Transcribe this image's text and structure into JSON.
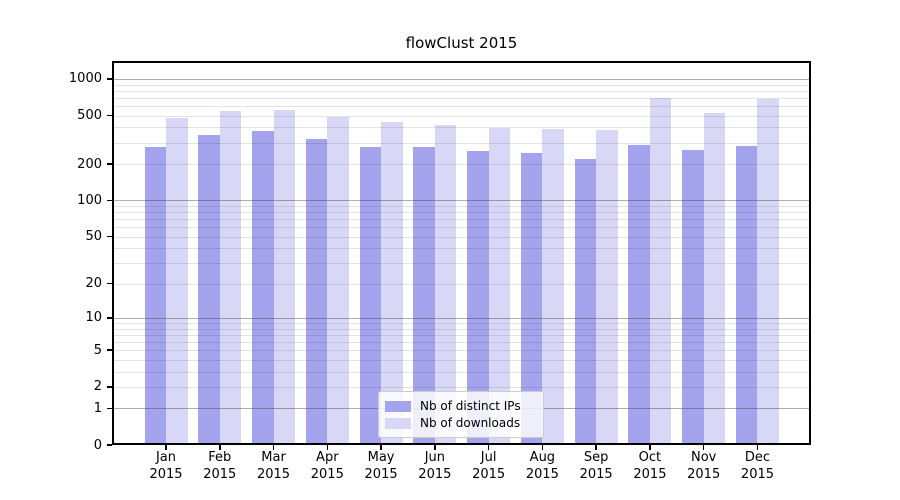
{
  "chart_data": {
    "type": "bar",
    "title": "flowClust 2015",
    "categories": [
      "Jan 2015",
      "Feb 2015",
      "Mar 2015",
      "Apr 2015",
      "May 2015",
      "Jun 2015",
      "Jul 2015",
      "Aug 2015",
      "Sep 2015",
      "Oct 2015",
      "Nov 2015",
      "Dec 2015"
    ],
    "series": [
      {
        "name": "Nb of distinct IPs",
        "color": "#a4a4ee",
        "values": [
          278,
          345,
          376,
          320,
          278,
          278,
          256,
          245,
          220,
          289,
          262,
          280
        ]
      },
      {
        "name": "Nb of downloads",
        "color": "#d8d8f6",
        "values": [
          475,
          546,
          557,
          486,
          440,
          420,
          394,
          388,
          380,
          697,
          525,
          690
        ]
      }
    ],
    "xlabel": "",
    "ylabel": "",
    "y_axis": {
      "scale": "log1p",
      "ylim": [
        0,
        1000
      ],
      "tick_labels": [
        "0",
        "1",
        "2",
        "5",
        "10",
        "20",
        "50",
        "100",
        "200",
        "500",
        "1000"
      ]
    },
    "grid": "horizontal, major gray lines at 1/10/100/1000 with faint log minor lines",
    "legend_position": "inside bottom-center",
    "colors": {
      "bar_distinct_ips": "#a4a4ee",
      "bar_downloads": "#d8d8f6",
      "grid_major": "rgba(60,60,60,0.42)",
      "grid_minor": "rgba(60,60,60,0.14)",
      "axis": "#000000",
      "legend_border": "#cccccc"
    }
  }
}
